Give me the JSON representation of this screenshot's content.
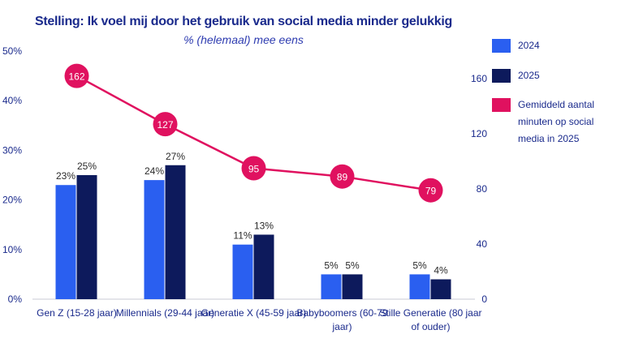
{
  "chart_data": {
    "type": "bar+line",
    "title": "Stelling: Ik voel mij door het gebruik van social media minder gelukkig",
    "subtitle": "% (helemaal) mee eens",
    "categories": [
      [
        "Gen Z (15-28 jaar)"
      ],
      [
        "Millennials (29-44 jaar)"
      ],
      [
        "Generatie X (45-59 jaar)"
      ],
      [
        "Babyboomers (60-79",
        "jaar)"
      ],
      [
        "Stille Generatie (80 jaar",
        "of ouder)"
      ]
    ],
    "series": [
      {
        "name": "2024",
        "type": "bar",
        "axis": "left",
        "color": "#2a5ff0",
        "values": [
          23,
          24,
          11,
          5,
          5
        ],
        "labels": [
          "23%",
          "24%",
          "11%",
          "5%",
          "5%"
        ]
      },
      {
        "name": "2025",
        "type": "bar",
        "axis": "left",
        "color": "#0d1a5c",
        "values": [
          25,
          27,
          13,
          5,
          4
        ],
        "labels": [
          "25%",
          "27%",
          "13%",
          "5%",
          "4%"
        ]
      },
      {
        "name": "Gemiddeld aantal minuten op social media in 2025",
        "type": "line",
        "axis": "right",
        "color": "#e0115f",
        "values": [
          162,
          127,
          95,
          89,
          79
        ],
        "labels": [
          "162",
          "127",
          "95",
          "89",
          "79"
        ]
      }
    ],
    "y_left": {
      "min": 0,
      "max": 50,
      "ticks": [
        0,
        10,
        20,
        30,
        40,
        50
      ],
      "tick_labels": [
        "0%",
        "10%",
        "20%",
        "30%",
        "40%",
        "50%"
      ]
    },
    "y_right": {
      "min": 0,
      "max": 180,
      "ticks": [
        0,
        40,
        80,
        120,
        160
      ],
      "tick_labels": [
        "0",
        "40",
        "80",
        "120",
        "160"
      ]
    },
    "legend_position": "right"
  },
  "legend": [
    {
      "label": "2024",
      "color": "#2a5ff0"
    },
    {
      "label": "2025",
      "color": "#0d1a5c"
    },
    {
      "label": "Gemiddeld aantal minuten op social media in 2025",
      "color": "#e0115f"
    }
  ]
}
